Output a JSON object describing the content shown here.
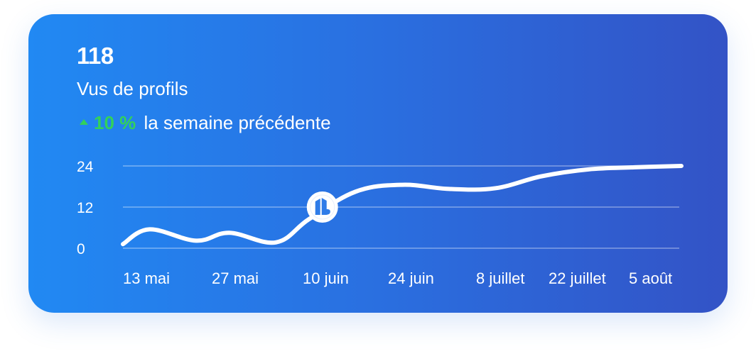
{
  "card": {
    "value": "118",
    "label": "Vus de profils",
    "change_value": "10 %",
    "change_text": "la semaine précédente"
  },
  "colors": {
    "positive": "#33d15a",
    "line": "#ffffff",
    "gradient_start": "#2189f3",
    "gradient_end": "#3353c6"
  },
  "icons": {
    "marker": "logo-badge-icon",
    "trend": "triangle-up-icon"
  },
  "chart_data": {
    "type": "line",
    "title": "",
    "xlabel": "",
    "ylabel": "",
    "ylim": [
      0,
      24
    ],
    "yticks": [
      0,
      12,
      24
    ],
    "ytick_labels": [
      "0",
      "12",
      "24"
    ],
    "categories": [
      "13 mai",
      "27 mai",
      "10 juin",
      "24 juin",
      "8 juillet",
      "22 juillet",
      "5 août"
    ],
    "grid": true,
    "series": [
      {
        "x": [
          "2024-05-13",
          "2024-05-17",
          "2024-05-24",
          "2024-05-29",
          "2024-06-05",
          "2024-06-10",
          "2024-06-17",
          "2024-06-24",
          "2024-07-01",
          "2024-07-08",
          "2024-07-15",
          "2024-07-22",
          "2024-07-29",
          "2024-08-05"
        ],
        "y": [
          1.2,
          5.5,
          2.2,
          4.5,
          1.7,
          8.5,
          16.5,
          18.5,
          17.3,
          17.5,
          21.0,
          23.0,
          23.6,
          24.0
        ]
      }
    ],
    "highlight": {
      "x": "2024-06-12",
      "y": 12
    }
  }
}
